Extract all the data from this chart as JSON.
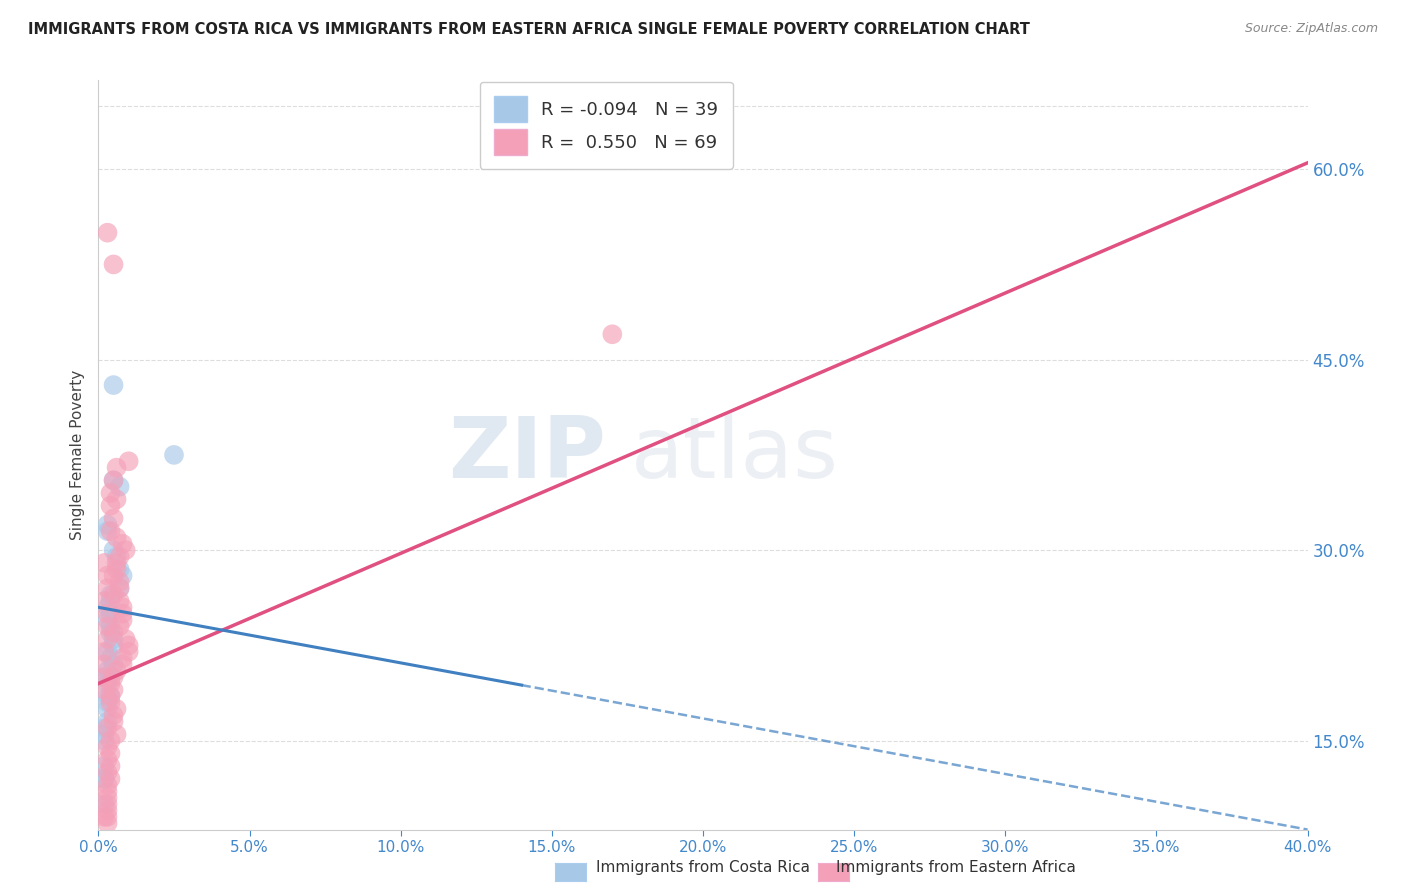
{
  "title": "IMMIGRANTS FROM COSTA RICA VS IMMIGRANTS FROM EASTERN AFRICA SINGLE FEMALE POVERTY CORRELATION CHART",
  "source": "Source: ZipAtlas.com",
  "ylabel": "Single Female Poverty",
  "right_yticks": [
    15.0,
    30.0,
    45.0,
    60.0
  ],
  "xlim": [
    0.0,
    0.4
  ],
  "ylim": [
    0.08,
    0.67
  ],
  "legend_R1": "-0.094",
  "legend_N1": "39",
  "legend_R2": "0.550",
  "legend_N2": "69",
  "color_blue": "#a8c8e8",
  "color_pink": "#f4a0b8",
  "color_blue_line": "#4080c0",
  "color_pink_line": "#e05080",
  "color_title": "#222222",
  "color_source": "#888888",
  "color_axis_label": "#4488cc",
  "blue_line_y0": 0.255,
  "blue_line_y1": 0.08,
  "pink_line_y0": 0.195,
  "pink_line_y1": 0.605,
  "costa_rica_x": [
    0.005,
    0.025,
    0.005,
    0.007,
    0.003,
    0.003,
    0.005,
    0.006,
    0.007,
    0.008,
    0.007,
    0.004,
    0.004,
    0.003,
    0.004,
    0.003,
    0.004,
    0.004,
    0.005,
    0.005,
    0.003,
    0.004,
    0.005,
    0.003,
    0.004,
    0.002,
    0.003,
    0.004,
    0.003,
    0.003,
    0.003,
    0.003,
    0.002,
    0.002,
    0.002,
    0.002,
    0.002,
    0.002,
    0.002
  ],
  "costa_rica_y": [
    0.43,
    0.375,
    0.355,
    0.35,
    0.32,
    0.315,
    0.3,
    0.295,
    0.285,
    0.28,
    0.27,
    0.265,
    0.26,
    0.255,
    0.25,
    0.245,
    0.24,
    0.235,
    0.23,
    0.225,
    0.22,
    0.215,
    0.21,
    0.205,
    0.2,
    0.2,
    0.195,
    0.185,
    0.185,
    0.18,
    0.175,
    0.165,
    0.16,
    0.155,
    0.15,
    0.13,
    0.12,
    0.12,
    0.1
  ],
  "eastern_africa_x": [
    0.003,
    0.005,
    0.17,
    0.01,
    0.006,
    0.005,
    0.004,
    0.006,
    0.004,
    0.005,
    0.004,
    0.006,
    0.008,
    0.009,
    0.007,
    0.006,
    0.006,
    0.005,
    0.007,
    0.007,
    0.005,
    0.007,
    0.008,
    0.008,
    0.008,
    0.007,
    0.005,
    0.009,
    0.01,
    0.01,
    0.008,
    0.008,
    0.006,
    0.005,
    0.004,
    0.005,
    0.004,
    0.004,
    0.006,
    0.005,
    0.005,
    0.003,
    0.006,
    0.004,
    0.003,
    0.004,
    0.003,
    0.004,
    0.003,
    0.004,
    0.003,
    0.003,
    0.003,
    0.003,
    0.003,
    0.003,
    0.002,
    0.003,
    0.002,
    0.003,
    0.003,
    0.002,
    0.003,
    0.003,
    0.003,
    0.002,
    0.002,
    0.002,
    0.002
  ],
  "eastern_africa_y": [
    0.55,
    0.525,
    0.47,
    0.37,
    0.365,
    0.355,
    0.345,
    0.34,
    0.335,
    0.325,
    0.315,
    0.31,
    0.305,
    0.3,
    0.295,
    0.29,
    0.285,
    0.28,
    0.275,
    0.27,
    0.265,
    0.26,
    0.255,
    0.25,
    0.245,
    0.24,
    0.235,
    0.23,
    0.225,
    0.22,
    0.215,
    0.21,
    0.205,
    0.2,
    0.195,
    0.19,
    0.185,
    0.18,
    0.175,
    0.17,
    0.165,
    0.16,
    0.155,
    0.15,
    0.145,
    0.14,
    0.135,
    0.13,
    0.125,
    0.12,
    0.115,
    0.11,
    0.105,
    0.1,
    0.095,
    0.09,
    0.09,
    0.085,
    0.29,
    0.28,
    0.27,
    0.26,
    0.25,
    0.24,
    0.23,
    0.22,
    0.21,
    0.2,
    0.19
  ]
}
